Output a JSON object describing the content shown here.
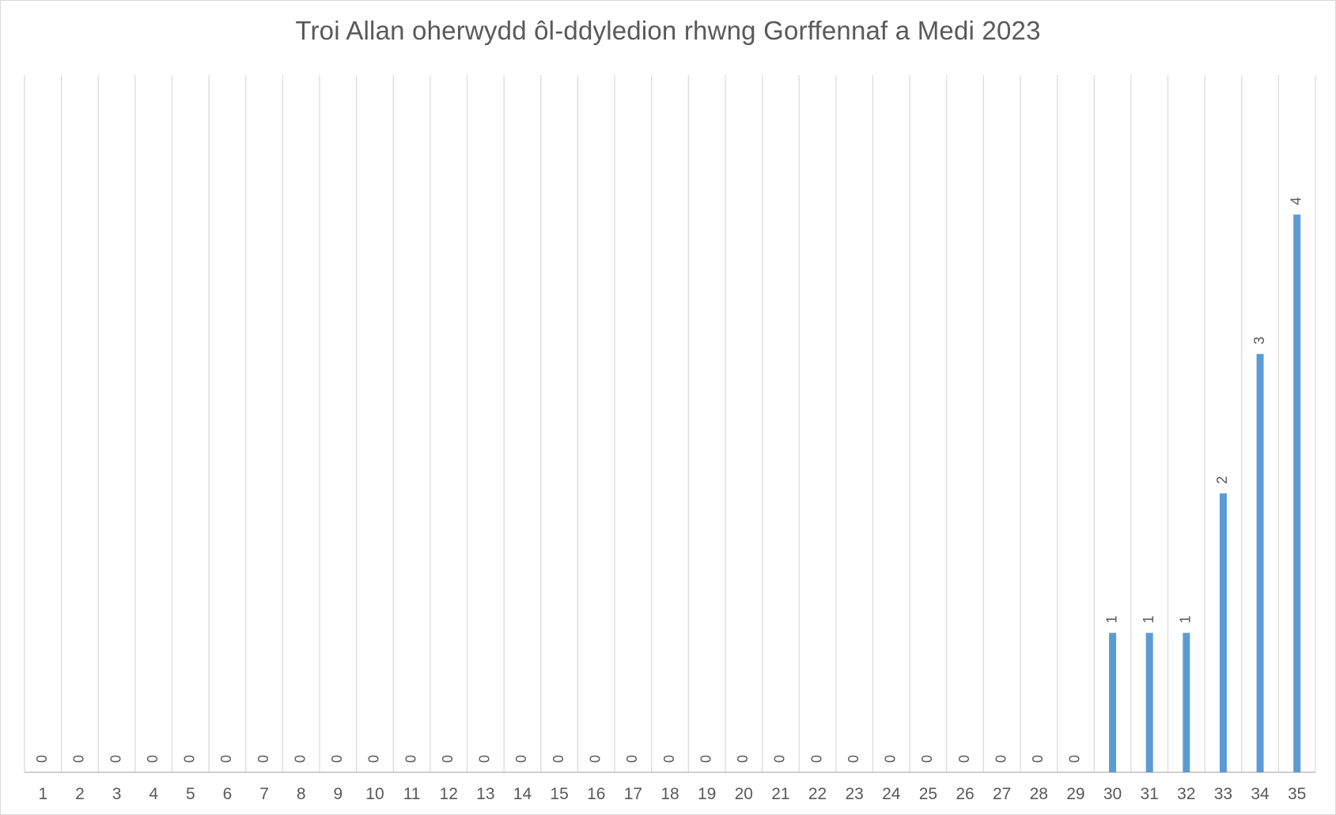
{
  "chart_data": {
    "type": "bar",
    "title": "Troi Allan oherwydd ôl-ddyledion rhwng Gorffennaf a Medi 2023",
    "xlabel": "",
    "ylabel": "",
    "categories": [
      "1",
      "2",
      "3",
      "4",
      "5",
      "6",
      "7",
      "8",
      "9",
      "10",
      "11",
      "12",
      "13",
      "14",
      "15",
      "16",
      "17",
      "18",
      "19",
      "20",
      "21",
      "22",
      "23",
      "24",
      "25",
      "26",
      "27",
      "28",
      "29",
      "30",
      "31",
      "32",
      "33",
      "34",
      "35"
    ],
    "values": [
      0,
      0,
      0,
      0,
      0,
      0,
      0,
      0,
      0,
      0,
      0,
      0,
      0,
      0,
      0,
      0,
      0,
      0,
      0,
      0,
      0,
      0,
      0,
      0,
      0,
      0,
      0,
      0,
      0,
      1,
      1,
      1,
      2,
      3,
      4
    ],
    "ylim": [
      0,
      5
    ],
    "data_labels": true,
    "grid": "vertical",
    "legend": "none",
    "colors": {
      "bar": "#5b9bd5",
      "grid": "#d9d9d9",
      "axis": "#bfbfbf",
      "text": "#595959"
    }
  }
}
